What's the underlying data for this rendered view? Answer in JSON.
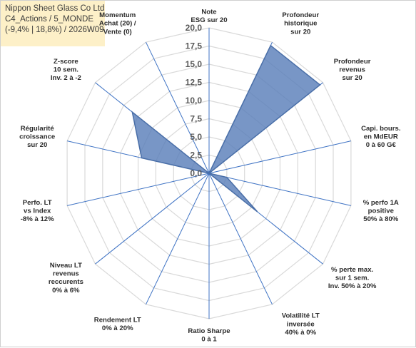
{
  "header": {
    "line1": "Nippon Sheet Glass Co Ltd",
    "line2": "C4_Actions / 5_MONDE",
    "line3": "(-9,4% | 18,8%) / 2026W09"
  },
  "chart_data": {
    "type": "radar",
    "rlim": [
      0,
      20
    ],
    "r_ticks": [
      "0,0",
      "2,5",
      "5,0",
      "7,5",
      "10,0",
      "12,5",
      "15,0",
      "17,5",
      "20,0"
    ],
    "categories": [
      [
        "Note",
        "ESG sur 20"
      ],
      [
        "Profondeur",
        "historique",
        "sur 20"
      ],
      [
        "Profondeur",
        "revenus",
        "sur 20"
      ],
      [
        "Capi. bours.",
        "en MdEUR",
        "0 à 60 G€"
      ],
      [
        "% perfo 1A",
        "positive",
        "50% à 80%"
      ],
      [
        "% perte max.",
        "sur 1 sem.",
        "Inv. 50% à 20%"
      ],
      [
        "Volatilité LT",
        "inversée",
        "40% à 0%"
      ],
      [
        "Ratio Sharpe",
        "0 à 1"
      ],
      [
        "Rendement LT",
        "0% à 20%"
      ],
      [
        "Niveau LT",
        "revenus",
        "reccurents",
        "0% à 6%"
      ],
      [
        "Perfo. LT",
        "vs Index",
        "-8% à 12%"
      ],
      [
        "Régularité",
        "croissance",
        "sur 20"
      ],
      [
        "Z-score",
        "10 sem.",
        "Inv. 2 à -2"
      ],
      [
        "Momentum",
        "Achat (20) /",
        "Vente (0)"
      ]
    ],
    "values": [
      0,
      19.5,
      19.5,
      0,
      2.5,
      8.5,
      0,
      0,
      0,
      0,
      0,
      9.5,
      13.5,
      0
    ],
    "fill_color": "#5a7fba",
    "fill_opacity": 0.82,
    "stroke_color": "#4a6fa8",
    "grid_color": "#d9d9d9",
    "spoke_color": "#3f73c4",
    "grid": true
  }
}
